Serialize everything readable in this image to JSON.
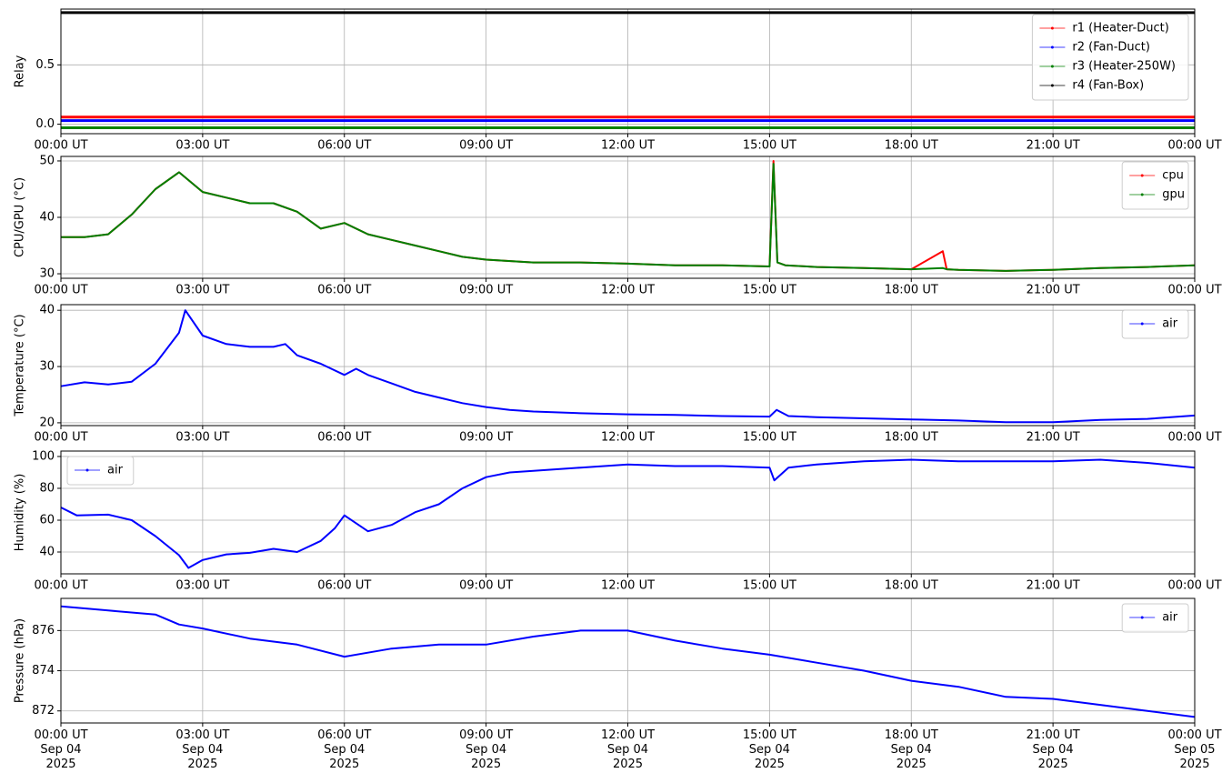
{
  "chart_data": [
    {
      "type": "line",
      "ylabel": "Relay",
      "legend": "upper right",
      "grid": true,
      "x": [
        "2025-09-04 00:00",
        "2025-09-05 00:00"
      ],
      "series": [
        {
          "name": "r1 (Heater-Duct)",
          "color": "#ff0000",
          "values": [
            0.06,
            0.06
          ]
        },
        {
          "name": "r2 (Fan-Duct)",
          "color": "#0000ff",
          "values": [
            0.03,
            0.03
          ]
        },
        {
          "name": "r3 (Heater-250W)",
          "color": "#008000",
          "values": [
            -0.03,
            -0.03
          ]
        },
        {
          "name": "r4 (Fan-Box)",
          "color": "#000000",
          "values": [
            0.94,
            0.94
          ]
        }
      ],
      "xlim": [
        "2025-09-04 00:00",
        "2025-09-05 00:00"
      ],
      "xticks": [
        {
          "value": "2025-09-04 00:00",
          "label": "00:00 UT"
        },
        {
          "value": "2025-09-04 03:00",
          "label": "03:00 UT"
        },
        {
          "value": "2025-09-04 06:00",
          "label": "06:00 UT"
        },
        {
          "value": "2025-09-04 09:00",
          "label": "09:00 UT"
        },
        {
          "value": "2025-09-04 12:00",
          "label": "12:00 UT"
        },
        {
          "value": "2025-09-04 15:00",
          "label": "15:00 UT"
        },
        {
          "value": "2025-09-04 18:00",
          "label": "18:00 UT"
        },
        {
          "value": "2025-09-04 21:00",
          "label": "21:00 UT"
        },
        {
          "value": "2025-09-05 00:00",
          "label": "00:00 UT"
        }
      ],
      "ylim": [
        -0.08,
        0.97
      ],
      "yticks": [
        {
          "value": 0,
          "label": "0.0"
        },
        0.5
      ]
    },
    {
      "type": "line",
      "ylabel": "CPU/GPU (°C)",
      "legend": "upper right",
      "grid": true,
      "x": [
        "2025-09-04 00:00",
        "2025-09-04 00:30",
        "2025-09-04 01:00",
        "2025-09-04 01:30",
        "2025-09-04 02:00",
        "2025-09-04 02:30",
        "2025-09-04 03:00",
        "2025-09-04 03:30",
        "2025-09-04 04:00",
        "2025-09-04 04:30",
        "2025-09-04 05:00",
        "2025-09-04 05:30",
        "2025-09-04 06:00",
        "2025-09-04 06:30",
        "2025-09-04 07:00",
        "2025-09-04 07:30",
        "2025-09-04 08:00",
        "2025-09-04 08:30",
        "2025-09-04 09:00",
        "2025-09-04 10:00",
        "2025-09-04 11:00",
        "2025-09-04 12:00",
        "2025-09-04 13:00",
        "2025-09-04 14:00",
        "2025-09-04 15:00",
        "2025-09-04 15:05",
        "2025-09-04 15:10",
        "2025-09-04 15:20",
        "2025-09-04 16:00",
        "2025-09-04 17:00",
        "2025-09-04 18:00",
        "2025-09-04 18:40",
        "2025-09-04 18:45",
        "2025-09-04 19:00",
        "2025-09-04 20:00",
        "2025-09-04 21:00",
        "2025-09-04 22:00",
        "2025-09-04 23:00",
        "2025-09-05 00:00"
      ],
      "series": [
        {
          "name": "cpu",
          "color": "#ff0000",
          "values": [
            36.5,
            36.5,
            37,
            40.5,
            45,
            48,
            44.5,
            43.5,
            42.5,
            42.5,
            41,
            38,
            39,
            37,
            36,
            35,
            34,
            33,
            32.5,
            32,
            32,
            31.8,
            31.5,
            31.5,
            31.3,
            50,
            32,
            31.5,
            31.2,
            31,
            30.8,
            34,
            30.8,
            30.7,
            30.5,
            30.7,
            31,
            31.2,
            31.5
          ]
        },
        {
          "name": "gpu",
          "color": "#008000",
          "values": [
            36.5,
            36.5,
            37,
            40.5,
            45,
            48,
            44.5,
            43.5,
            42.5,
            42.5,
            41,
            38,
            39,
            37,
            36,
            35,
            34,
            33,
            32.5,
            32,
            32,
            31.8,
            31.5,
            31.5,
            31.3,
            49.5,
            32,
            31.5,
            31.2,
            31,
            30.8,
            31,
            30.8,
            30.7,
            30.5,
            30.7,
            31,
            31.2,
            31.5
          ]
        }
      ],
      "xlim": [
        "2025-09-04 00:00",
        "2025-09-05 00:00"
      ],
      "xticks": [
        {
          "value": "2025-09-04 00:00",
          "label": "00:00 UT"
        },
        {
          "value": "2025-09-04 03:00",
          "label": "03:00 UT"
        },
        {
          "value": "2025-09-04 06:00",
          "label": "06:00 UT"
        },
        {
          "value": "2025-09-04 09:00",
          "label": "09:00 UT"
        },
        {
          "value": "2025-09-04 12:00",
          "label": "12:00 UT"
        },
        {
          "value": "2025-09-04 15:00",
          "label": "15:00 UT"
        },
        {
          "value": "2025-09-04 18:00",
          "label": "18:00 UT"
        },
        {
          "value": "2025-09-04 21:00",
          "label": "21:00 UT"
        },
        {
          "value": "2025-09-05 00:00",
          "label": "00:00 UT"
        }
      ],
      "ylim": [
        29.2,
        50.8
      ],
      "yticks": [
        30,
        40,
        50
      ]
    },
    {
      "type": "line",
      "ylabel": "Temperature (°C)",
      "legend": "upper right",
      "grid": true,
      "x": [
        "2025-09-04 00:00",
        "2025-09-04 00:30",
        "2025-09-04 01:00",
        "2025-09-04 01:30",
        "2025-09-04 02:00",
        "2025-09-04 02:30",
        "2025-09-04 02:38",
        "2025-09-04 03:00",
        "2025-09-04 03:30",
        "2025-09-04 04:00",
        "2025-09-04 04:30",
        "2025-09-04 04:45",
        "2025-09-04 05:00",
        "2025-09-04 05:30",
        "2025-09-04 06:00",
        "2025-09-04 06:15",
        "2025-09-04 06:30",
        "2025-09-04 07:00",
        "2025-09-04 07:30",
        "2025-09-04 08:00",
        "2025-09-04 08:30",
        "2025-09-04 09:00",
        "2025-09-04 09:30",
        "2025-09-04 10:00",
        "2025-09-04 11:00",
        "2025-09-04 12:00",
        "2025-09-04 13:00",
        "2025-09-04 14:00",
        "2025-09-04 15:00",
        "2025-09-04 15:09",
        "2025-09-04 15:24",
        "2025-09-04 16:00",
        "2025-09-04 17:00",
        "2025-09-04 18:00",
        "2025-09-04 19:00",
        "2025-09-04 20:00",
        "2025-09-04 21:00",
        "2025-09-04 22:00",
        "2025-09-04 23:00",
        "2025-09-05 00:00"
      ],
      "series": [
        {
          "name": "air",
          "color": "#0000ff",
          "values": [
            26.5,
            27.2,
            26.8,
            27.3,
            30.5,
            36,
            40,
            35.5,
            34,
            33.5,
            33.5,
            34,
            32,
            30.5,
            28.5,
            29.6,
            28.5,
            27,
            25.5,
            24.5,
            23.5,
            22.8,
            22.3,
            22,
            21.7,
            21.5,
            21.4,
            21.2,
            21.1,
            22.3,
            21.2,
            21,
            20.8,
            20.6,
            20.4,
            20.1,
            20.1,
            20.5,
            20.7,
            21.3
          ]
        }
      ],
      "xlim": [
        "2025-09-04 00:00",
        "2025-09-05 00:00"
      ],
      "xticks": [
        {
          "value": "2025-09-04 00:00",
          "label": "00:00 UT"
        },
        {
          "value": "2025-09-04 03:00",
          "label": "03:00 UT"
        },
        {
          "value": "2025-09-04 06:00",
          "label": "06:00 UT"
        },
        {
          "value": "2025-09-04 09:00",
          "label": "09:00 UT"
        },
        {
          "value": "2025-09-04 12:00",
          "label": "12:00 UT"
        },
        {
          "value": "2025-09-04 15:00",
          "label": "15:00 UT"
        },
        {
          "value": "2025-09-04 18:00",
          "label": "18:00 UT"
        },
        {
          "value": "2025-09-04 21:00",
          "label": "21:00 UT"
        },
        {
          "value": "2025-09-05 00:00",
          "label": "00:00 UT"
        }
      ],
      "ylim": [
        19.5,
        41
      ],
      "yticks": [
        20,
        30,
        40
      ]
    },
    {
      "type": "line",
      "ylabel": "Humidity (%)",
      "legend": "upper left",
      "grid": true,
      "x": [
        "2025-09-04 00:00",
        "2025-09-04 00:20",
        "2025-09-04 01:00",
        "2025-09-04 01:30",
        "2025-09-04 02:00",
        "2025-09-04 02:30",
        "2025-09-04 02:42",
        "2025-09-04 03:00",
        "2025-09-04 03:30",
        "2025-09-04 04:00",
        "2025-09-04 04:30",
        "2025-09-04 05:00",
        "2025-09-04 05:30",
        "2025-09-04 05:48",
        "2025-09-04 06:00",
        "2025-09-04 06:30",
        "2025-09-04 07:00",
        "2025-09-04 07:30",
        "2025-09-04 08:00",
        "2025-09-04 08:30",
        "2025-09-04 09:00",
        "2025-09-04 09:30",
        "2025-09-04 10:00",
        "2025-09-04 11:00",
        "2025-09-04 12:00",
        "2025-09-04 13:00",
        "2025-09-04 14:00",
        "2025-09-04 15:00",
        "2025-09-04 15:06",
        "2025-09-04 15:24",
        "2025-09-04 16:00",
        "2025-09-04 17:00",
        "2025-09-04 18:00",
        "2025-09-04 19:00",
        "2025-09-04 20:00",
        "2025-09-04 21:00",
        "2025-09-04 22:00",
        "2025-09-04 23:00",
        "2025-09-05 00:00"
      ],
      "series": [
        {
          "name": "air",
          "color": "#0000ff",
          "values": [
            68,
            63,
            63.5,
            60,
            50,
            38,
            30,
            35,
            38.5,
            39.5,
            42,
            40,
            47,
            55,
            63,
            53,
            57,
            65,
            70,
            80,
            87,
            90,
            91,
            93,
            95,
            94,
            94,
            93,
            85,
            93,
            95,
            97,
            98,
            97,
            97,
            97,
            98,
            96,
            93
          ]
        }
      ],
      "xlim": [
        "2025-09-04 00:00",
        "2025-09-05 00:00"
      ],
      "xticks": [
        {
          "value": "2025-09-04 00:00",
          "label": "00:00 UT"
        },
        {
          "value": "2025-09-04 03:00",
          "label": "03:00 UT"
        },
        {
          "value": "2025-09-04 06:00",
          "label": "06:00 UT"
        },
        {
          "value": "2025-09-04 09:00",
          "label": "09:00 UT"
        },
        {
          "value": "2025-09-04 12:00",
          "label": "12:00 UT"
        },
        {
          "value": "2025-09-04 15:00",
          "label": "15:00 UT"
        },
        {
          "value": "2025-09-04 18:00",
          "label": "18:00 UT"
        },
        {
          "value": "2025-09-04 21:00",
          "label": "21:00 UT"
        },
        {
          "value": "2025-09-05 00:00",
          "label": "00:00 UT"
        }
      ],
      "ylim": [
        26.3,
        103.4
      ],
      "yticks": [
        40,
        60,
        80,
        100
      ]
    },
    {
      "type": "line",
      "ylabel": "Pressure (hPa)",
      "legend": "upper right",
      "grid": true,
      "x": [
        "2025-09-04 00:00",
        "2025-09-04 01:00",
        "2025-09-04 02:00",
        "2025-09-04 02:30",
        "2025-09-04 03:00",
        "2025-09-04 04:00",
        "2025-09-04 05:00",
        "2025-09-04 06:00",
        "2025-09-04 07:00",
        "2025-09-04 08:00",
        "2025-09-04 09:00",
        "2025-09-04 10:00",
        "2025-09-04 11:00",
        "2025-09-04 12:00",
        "2025-09-04 13:00",
        "2025-09-04 14:00",
        "2025-09-04 15:00",
        "2025-09-04 16:00",
        "2025-09-04 17:00",
        "2025-09-04 18:00",
        "2025-09-04 19:00",
        "2025-09-04 20:00",
        "2025-09-04 21:00",
        "2025-09-04 22:00",
        "2025-09-04 23:00",
        "2025-09-05 00:00"
      ],
      "series": [
        {
          "name": "air",
          "color": "#0000ff",
          "values": [
            877.2,
            877,
            876.8,
            876.3,
            876.1,
            875.6,
            875.3,
            874.7,
            875.1,
            875.3,
            875.3,
            875.7,
            876,
            876,
            875.5,
            875.1,
            874.8,
            874.4,
            874,
            873.5,
            873.2,
            872.7,
            872.6,
            872.3,
            872,
            871.7
          ]
        }
      ],
      "xlim": [
        "2025-09-04 00:00",
        "2025-09-05 00:00"
      ],
      "xticks": [
        {
          "value": "2025-09-04 00:00",
          "label": "00:00 UT\nSep 04\n2025"
        },
        {
          "value": "2025-09-04 03:00",
          "label": "03:00 UT\nSep 04\n2025"
        },
        {
          "value": "2025-09-04 06:00",
          "label": "06:00 UT\nSep 04\n2025"
        },
        {
          "value": "2025-09-04 09:00",
          "label": "09:00 UT\nSep 04\n2025"
        },
        {
          "value": "2025-09-04 12:00",
          "label": "12:00 UT\nSep 04\n2025"
        },
        {
          "value": "2025-09-04 15:00",
          "label": "15:00 UT\nSep 04\n2025"
        },
        {
          "value": "2025-09-04 18:00",
          "label": "18:00 UT\nSep 04\n2025"
        },
        {
          "value": "2025-09-04 21:00",
          "label": "21:00 UT\nSep 04\n2025"
        },
        {
          "value": "2025-09-05 00:00",
          "label": "00:00 UT\nSep 05\n2025"
        }
      ],
      "ylim": [
        871.4,
        877.6
      ],
      "yticks": [
        872,
        874,
        876
      ]
    }
  ]
}
